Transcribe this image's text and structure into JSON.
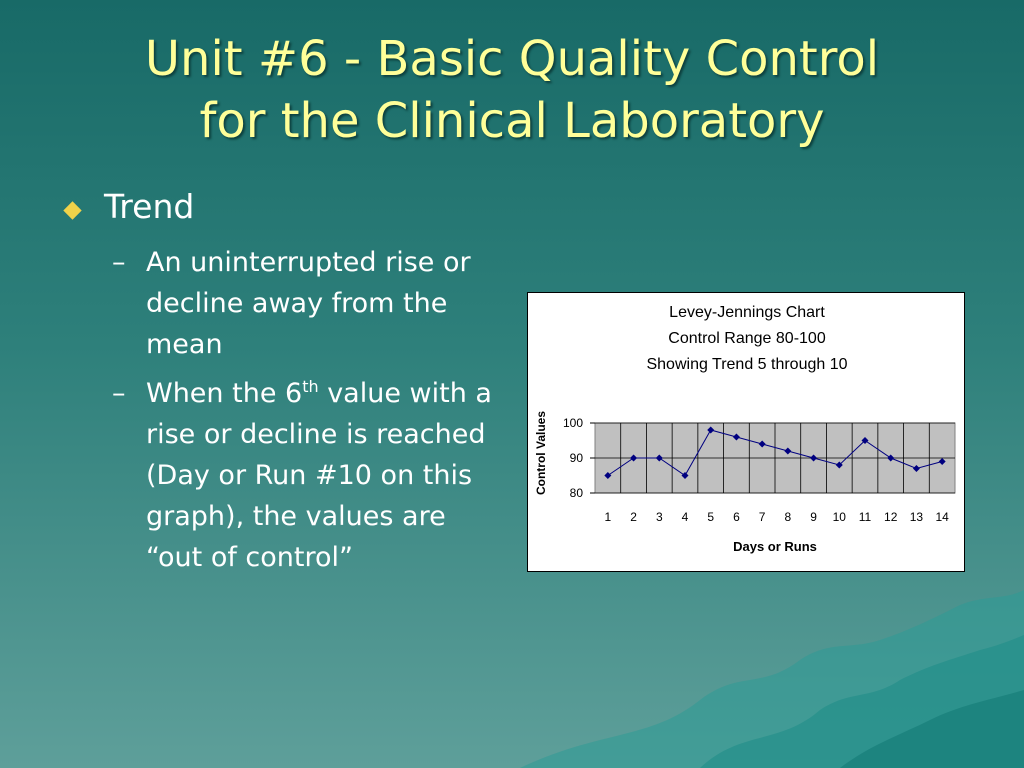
{
  "slide": {
    "title_line1": "Unit #6 - Basic Quality Control",
    "title_line2": "for the Clinical Laboratory",
    "bullet": "Trend",
    "sub_bullets": [
      {
        "dash": "–",
        "text": "An uninterrupted rise or decline away from the mean"
      },
      {
        "dash": "–",
        "text_before": "When the 6",
        "superscript": "th",
        "text_after": " value with a rise or decline is reached (Day or Run #10 on this graph), the values are “out of control”"
      }
    ]
  },
  "colors": {
    "title": "#ffff99",
    "body_text": "#ffffff",
    "bullet_diamond": "#f0d24a",
    "series": "#000080",
    "plot_bg": "#c0c0c0"
  },
  "chart_data": {
    "type": "line",
    "title_lines": [
      "Levey-Jennings Chart",
      "Control Range 80-100",
      "Showing Trend  5 through 10"
    ],
    "xlabel": "Days or Runs",
    "ylabel": "Control Values",
    "categories": [
      "1",
      "2",
      "3",
      "4",
      "5",
      "6",
      "7",
      "8",
      "9",
      "10",
      "11",
      "12",
      "13",
      "14"
    ],
    "values": [
      85,
      90,
      90,
      85,
      98,
      96,
      94,
      92,
      90,
      88,
      95,
      90,
      87,
      89
    ],
    "ylim": [
      80,
      100
    ],
    "yticks": [
      80,
      90,
      100
    ],
    "grid": true,
    "marker": "diamond"
  }
}
